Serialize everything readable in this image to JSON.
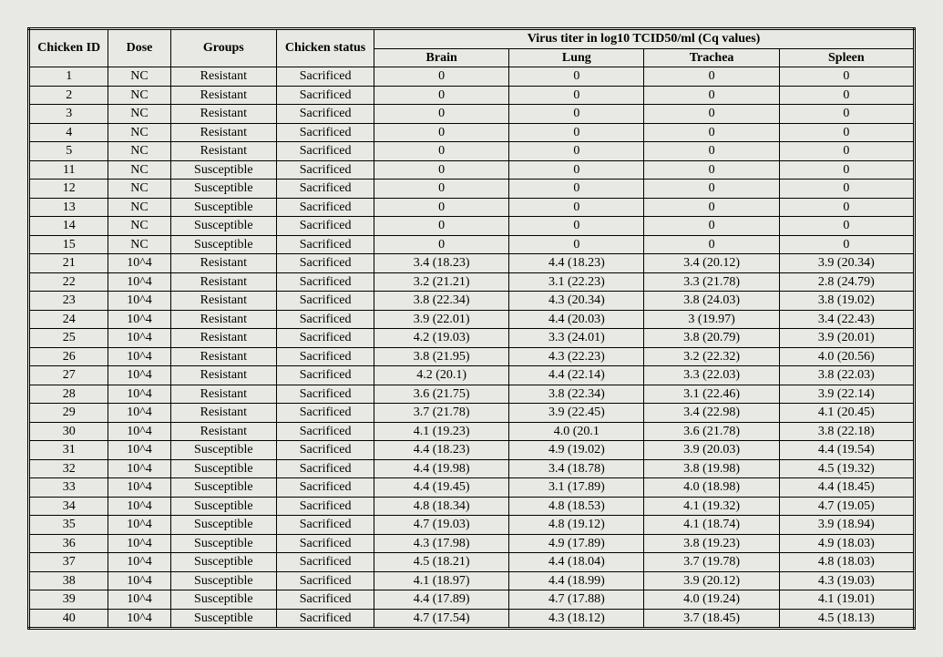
{
  "table": {
    "header_top": {
      "chicken_id": "Chicken ID",
      "dose": "Dose",
      "groups": "Groups",
      "status": "Chicken status",
      "titer_span": "Virus titer in log10 TCID50/ml (Cq values)"
    },
    "header_tissues": [
      "Brain",
      "Lung",
      "Trachea",
      "Spleen"
    ],
    "rows": [
      {
        "id": "1",
        "dose": "NC",
        "group": "Resistant",
        "status": "Sacrificed",
        "brain": "0",
        "lung": "0",
        "trachea": "0",
        "spleen": "0"
      },
      {
        "id": "2",
        "dose": "NC",
        "group": "Resistant",
        "status": "Sacrificed",
        "brain": "0",
        "lung": "0",
        "trachea": "0",
        "spleen": "0"
      },
      {
        "id": "3",
        "dose": "NC",
        "group": "Resistant",
        "status": "Sacrificed",
        "brain": "0",
        "lung": "0",
        "trachea": "0",
        "spleen": "0"
      },
      {
        "id": "4",
        "dose": "NC",
        "group": "Resistant",
        "status": "Sacrificed",
        "brain": "0",
        "lung": "0",
        "trachea": "0",
        "spleen": "0"
      },
      {
        "id": "5",
        "dose": "NC",
        "group": "Resistant",
        "status": "Sacrificed",
        "brain": "0",
        "lung": "0",
        "trachea": "0",
        "spleen": "0"
      },
      {
        "id": "11",
        "dose": "NC",
        "group": "Susceptible",
        "status": "Sacrificed",
        "brain": "0",
        "lung": "0",
        "trachea": "0",
        "spleen": "0"
      },
      {
        "id": "12",
        "dose": "NC",
        "group": "Susceptible",
        "status": "Sacrificed",
        "brain": "0",
        "lung": "0",
        "trachea": "0",
        "spleen": "0"
      },
      {
        "id": "13",
        "dose": "NC",
        "group": "Susceptible",
        "status": "Sacrificed",
        "brain": "0",
        "lung": "0",
        "trachea": "0",
        "spleen": "0"
      },
      {
        "id": "14",
        "dose": "NC",
        "group": "Susceptible",
        "status": "Sacrificed",
        "brain": "0",
        "lung": "0",
        "trachea": "0",
        "spleen": "0"
      },
      {
        "id": "15",
        "dose": "NC",
        "group": "Susceptible",
        "status": "Sacrificed",
        "brain": "0",
        "lung": "0",
        "trachea": "0",
        "spleen": "0"
      },
      {
        "id": "21",
        "dose": "10^4",
        "group": "Resistant",
        "status": "Sacrificed",
        "brain": "3.4 (18.23)",
        "lung": "4.4 (18.23)",
        "trachea": "3.4 (20.12)",
        "spleen": "3.9 (20.34)"
      },
      {
        "id": "22",
        "dose": "10^4",
        "group": "Resistant",
        "status": "Sacrificed",
        "brain": "3.2 (21.21)",
        "lung": "3.1 (22.23)",
        "trachea": "3.3 (21.78)",
        "spleen": "2.8 (24.79)"
      },
      {
        "id": "23",
        "dose": "10^4",
        "group": "Resistant",
        "status": "Sacrificed",
        "brain": "3.8 (22.34)",
        "lung": "4.3 (20.34)",
        "trachea": "3.8 (24.03)",
        "spleen": "3.8 (19.02)"
      },
      {
        "id": "24",
        "dose": "10^4",
        "group": "Resistant",
        "status": "Sacrificed",
        "brain": "3.9 (22.01)",
        "lung": "4.4 (20.03)",
        "trachea": "3 (19.97)",
        "spleen": "3.4 (22.43)"
      },
      {
        "id": "25",
        "dose": "10^4",
        "group": "Resistant",
        "status": "Sacrificed",
        "brain": "4.2 (19.03)",
        "lung": "3.3 (24.01)",
        "trachea": "3.8 (20.79)",
        "spleen": "3.9 (20.01)"
      },
      {
        "id": "26",
        "dose": "10^4",
        "group": "Resistant",
        "status": "Sacrificed",
        "brain": "3.8 (21.95)",
        "lung": "4.3 (22.23)",
        "trachea": "3.2 (22.32)",
        "spleen": "4.0 (20.56)"
      },
      {
        "id": "27",
        "dose": "10^4",
        "group": "Resistant",
        "status": "Sacrificed",
        "brain": "4.2 (20.1)",
        "lung": "4.4 (22.14)",
        "trachea": "3.3 (22.03)",
        "spleen": "3.8 (22.03)"
      },
      {
        "id": "28",
        "dose": "10^4",
        "group": "Resistant",
        "status": "Sacrificed",
        "brain": "3.6 (21.75)",
        "lung": "3.8 (22.34)",
        "trachea": "3.1 (22.46)",
        "spleen": "3.9 (22.14)"
      },
      {
        "id": "29",
        "dose": "10^4",
        "group": "Resistant",
        "status": "Sacrificed",
        "brain": "3.7 (21.78)",
        "lung": "3.9 (22.45)",
        "trachea": "3.4 (22.98)",
        "spleen": "4.1 (20.45)"
      },
      {
        "id": "30",
        "dose": "10^4",
        "group": "Resistant",
        "status": "Sacrificed",
        "brain": "4.1 (19.23)",
        "lung": "4.0 (20.1",
        "trachea": "3.6 (21.78)",
        "spleen": "3.8 (22.18)"
      },
      {
        "id": "31",
        "dose": "10^4",
        "group": "Susceptible",
        "status": "Sacrificed",
        "brain": "4.4 (18.23)",
        "lung": "4.9 (19.02)",
        "trachea": "3.9 (20.03)",
        "spleen": "4.4 (19.54)"
      },
      {
        "id": "32",
        "dose": "10^4",
        "group": "Susceptible",
        "status": "Sacrificed",
        "brain": "4.4 (19.98)",
        "lung": "3.4 (18.78)",
        "trachea": "3.8 (19.98)",
        "spleen": "4.5 (19.32)"
      },
      {
        "id": "33",
        "dose": "10^4",
        "group": "Susceptible",
        "status": "Sacrificed",
        "brain": "4.4 (19.45)",
        "lung": "3.1 (17.89)",
        "trachea": "4.0 (18.98)",
        "spleen": "4.4 (18.45)"
      },
      {
        "id": "34",
        "dose": "10^4",
        "group": "Susceptible",
        "status": "Sacrificed",
        "brain": "4.8 (18.34)",
        "lung": "4.8 (18.53)",
        "trachea": "4.1 (19.32)",
        "spleen": "4.7 (19.05)"
      },
      {
        "id": "35",
        "dose": "10^4",
        "group": "Susceptible",
        "status": "Sacrificed",
        "brain": "4.7 (19.03)",
        "lung": "4.8 (19.12)",
        "trachea": "4.1 (18.74)",
        "spleen": "3.9 (18.94)"
      },
      {
        "id": "36",
        "dose": "10^4",
        "group": "Susceptible",
        "status": "Sacrificed",
        "brain": "4.3 (17.98)",
        "lung": "4.9 (17.89)",
        "trachea": "3.8 (19.23)",
        "spleen": "4.9 (18.03)"
      },
      {
        "id": "37",
        "dose": "10^4",
        "group": "Susceptible",
        "status": "Sacrificed",
        "brain": "4.5 (18.21)",
        "lung": "4.4 (18.04)",
        "trachea": "3.7 (19.78)",
        "spleen": "4.8 (18.03)"
      },
      {
        "id": "38",
        "dose": "10^4",
        "group": "Susceptible",
        "status": "Sacrificed",
        "brain": "4.1 (18.97)",
        "lung": "4.4 (18.99)",
        "trachea": "3.9 (20.12)",
        "spleen": "4.3 (19.03)"
      },
      {
        "id": "39",
        "dose": "10^4",
        "group": "Susceptible",
        "status": "Sacrificed",
        "brain": "4.4 (17.89)",
        "lung": "4.7 (17.88)",
        "trachea": "4.0 (19.24)",
        "spleen": "4.1 (19.01)"
      },
      {
        "id": "40",
        "dose": "10^4",
        "group": "Susceptible",
        "status": "Sacrificed",
        "brain": "4.7 (17.54)",
        "lung": "4.3 (18.12)",
        "trachea": "3.7 (18.45)",
        "spleen": "4.5 (18.13)"
      }
    ],
    "style": {
      "background_color": "#e8e8e4",
      "border_color": "#000000",
      "text_color": "#000000",
      "font_family": "Times New Roman",
      "font_size_pt": 11,
      "header_weight": "bold",
      "outer_border": "double",
      "column_widths_pct": [
        9,
        7,
        12,
        11,
        15.25,
        15.25,
        15.25,
        15.25
      ]
    }
  }
}
